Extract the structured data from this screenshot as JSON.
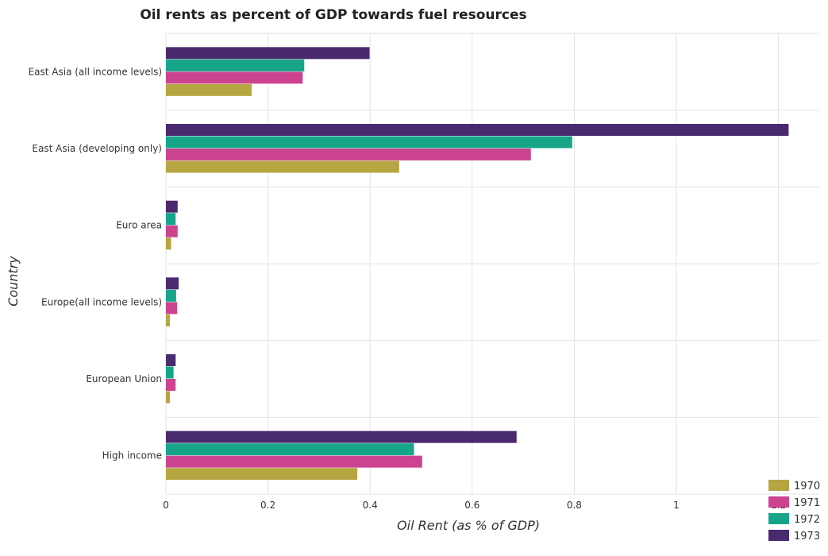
{
  "chart_data": {
    "type": "bar",
    "orientation": "horizontal",
    "title": "Oil rents as percent of GDP towards fuel resources",
    "xlabel": "Oil Rent (as % of GDP)",
    "ylabel": "Country",
    "xlim": [
      0,
      1.28
    ],
    "xticks": [
      "0",
      "0.2",
      "0.4",
      "0.6",
      "0.8",
      "1",
      "1.2"
    ],
    "xtick_values": [
      0,
      0.2,
      0.4,
      0.6,
      0.8,
      1.0,
      1.2
    ],
    "grid": true,
    "legend_position": "bottom-right",
    "categories": [
      "East Asia (all income levels)",
      "East Asia (developing only)",
      "Euro area",
      "Europe(all income levels)",
      "European Union",
      "High income"
    ],
    "series": [
      {
        "name": "1970",
        "color": "#b5a642",
        "values": [
          0.168,
          0.457,
          0.01,
          0.008,
          0.008,
          0.375
        ]
      },
      {
        "name": "1971",
        "color": "#cc4490",
        "values": [
          0.268,
          0.715,
          0.023,
          0.022,
          0.019,
          0.502
        ]
      },
      {
        "name": "1972",
        "color": "#17a589",
        "values": [
          0.271,
          0.796,
          0.019,
          0.02,
          0.015,
          0.486
        ]
      },
      {
        "name": "1973",
        "color": "#4a2a6e",
        "values": [
          0.399,
          1.22,
          0.023,
          0.025,
          0.019,
          0.687
        ]
      }
    ]
  }
}
